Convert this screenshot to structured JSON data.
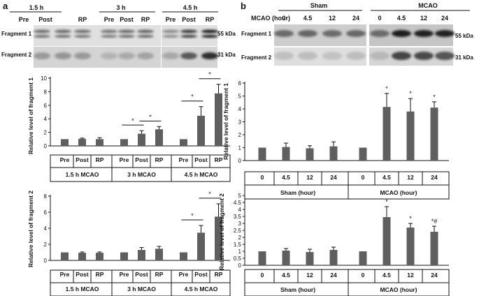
{
  "panel_a": {
    "label": "a",
    "blot": {
      "time_headers": [
        "1.5 h",
        "3 h",
        "4.5 h"
      ],
      "lane_labels": [
        "Pre",
        "Post",
        "RP",
        "Pre",
        "Post",
        "RP",
        "Pre",
        "Post",
        "RP"
      ],
      "rows": [
        "Fragment 1",
        "Fragment 2"
      ],
      "kda": [
        "55 kDa",
        "31 kDa"
      ]
    }
  },
  "panel_b": {
    "label": "b",
    "blot": {
      "group_headers": [
        "Sham",
        "MCAO"
      ],
      "lane_prefix": "MCAO (hour)",
      "lane_labels": [
        "0",
        "4.5",
        "12",
        "24",
        "0",
        "4.5",
        "12",
        "24"
      ],
      "rows": [
        "Fragment 1",
        "Fragment 2"
      ],
      "kda": [
        "55 kDa",
        "31 kDa"
      ]
    }
  },
  "chart_data": [
    {
      "id": "a1",
      "type": "bar",
      "title": "",
      "ylabel": "Relative level of fragment 1",
      "ylim": [
        0,
        10
      ],
      "yticks": [
        0,
        2,
        4,
        6,
        8,
        10
      ],
      "categories": [
        "Pre",
        "Post",
        "RP",
        "Pre",
        "Post",
        "RP",
        "Pre",
        "Post",
        "RP"
      ],
      "groups": [
        "1.5 h MCAO",
        "3 h MCAO",
        "4.5 h MCAO"
      ],
      "values": [
        1.0,
        1.05,
        1.0,
        1.0,
        1.8,
        2.45,
        1.0,
        4.45,
        7.75
      ],
      "errors": [
        0,
        0.1,
        0.2,
        0,
        0.45,
        0.4,
        0,
        1.35,
        1.35
      ],
      "point_stars": [],
      "brackets": [
        [
          3,
          4
        ],
        [
          4,
          5
        ],
        [
          6,
          7
        ],
        [
          7,
          8
        ]
      ],
      "bracket_label": "*"
    },
    {
      "id": "a2",
      "type": "bar",
      "title": "",
      "ylabel": "Relative level of fragment 2",
      "ylim": [
        0,
        8
      ],
      "yticks": [
        0,
        2,
        4,
        6,
        8
      ],
      "categories": [
        "Pre",
        "Post",
        "RP",
        "Pre",
        "Post",
        "RP",
        "Pre",
        "Post",
        "RP"
      ],
      "groups": [
        "1.5 h MCAO",
        "3 h MCAO",
        "4.5 h MCAO"
      ],
      "values": [
        1.0,
        0.95,
        0.95,
        1.0,
        1.3,
        1.45,
        1.0,
        3.45,
        5.45
      ],
      "errors": [
        0,
        0.1,
        0.1,
        0,
        0.3,
        0.3,
        0,
        0.9,
        1.6
      ],
      "point_stars": [],
      "brackets": [
        [
          6,
          7
        ],
        [
          7,
          8
        ]
      ],
      "bracket_label": "*"
    },
    {
      "id": "b1",
      "type": "bar",
      "title": "",
      "ylabel": "Relative level of fragment 1",
      "ylim": [
        0,
        6
      ],
      "yticks": [
        0,
        1,
        2,
        3,
        4,
        5,
        6
      ],
      "categories": [
        "0",
        "4.5",
        "12",
        "24",
        "0",
        "4.5",
        "12",
        "24"
      ],
      "groups": [
        "Sham (hour)",
        "MCAO (hour)"
      ],
      "values": [
        1.0,
        1.05,
        0.95,
        1.1,
        1.0,
        4.15,
        3.8,
        4.1
      ],
      "errors": [
        0,
        0.3,
        0.2,
        0.35,
        0,
        1.05,
        1.0,
        0.45
      ],
      "point_stars": [
        "",
        "",
        "",
        "",
        "",
        "*",
        "*",
        "*"
      ],
      "brackets": [],
      "bracket_label": ""
    },
    {
      "id": "b2",
      "type": "bar",
      "title": "",
      "ylabel": "Relative level of fragment 2",
      "ylim": [
        0,
        5
      ],
      "yticks": [
        0,
        0.5,
        1,
        1.5,
        2,
        2.5,
        3,
        3.5,
        4,
        4.5,
        5
      ],
      "categories": [
        "0",
        "4.5",
        "12",
        "24",
        "0",
        "4.5",
        "12",
        "24"
      ],
      "groups": [
        "Sham (hour)",
        "MCAO (hour)"
      ],
      "values": [
        1.0,
        1.05,
        0.95,
        1.1,
        1.0,
        3.45,
        2.7,
        2.4
      ],
      "errors": [
        0,
        0.15,
        0.2,
        0.2,
        0,
        0.75,
        0.3,
        0.4
      ],
      "point_stars": [
        "",
        "",
        "",
        "",
        "",
        "*",
        "*",
        "*#"
      ],
      "brackets": [],
      "bracket_label": ""
    }
  ]
}
